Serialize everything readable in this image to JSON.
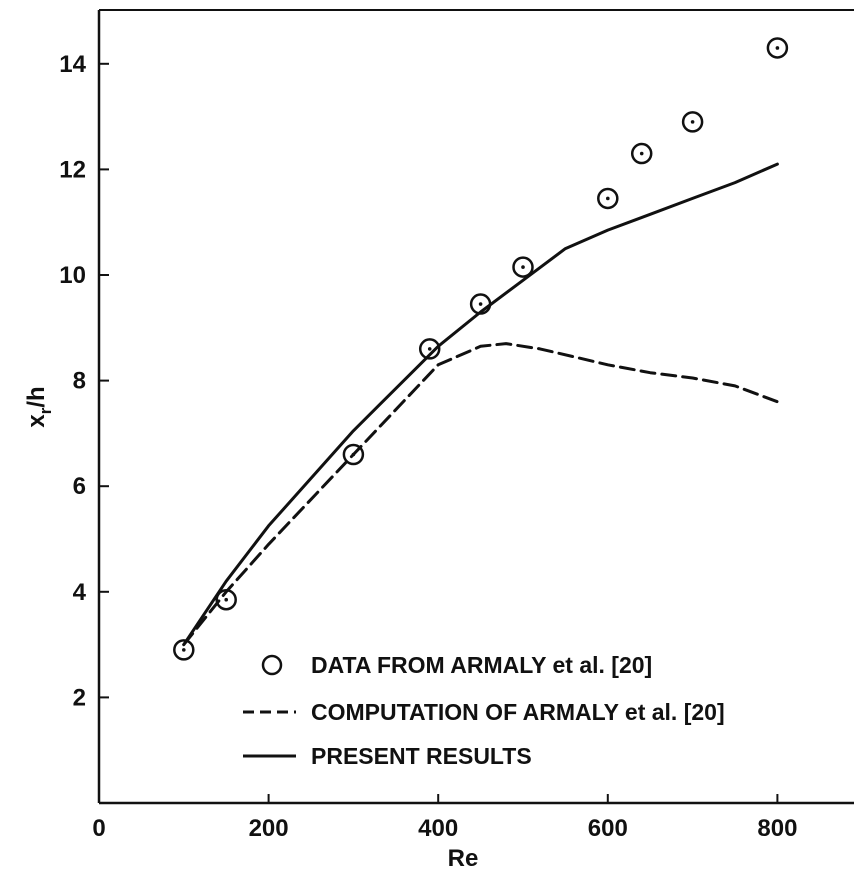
{
  "chart_data": {
    "type": "line",
    "title": "",
    "xlabel": "Re",
    "ylabel": {
      "main": "x",
      "sub": "r",
      "rest": "/h"
    },
    "xlim": [
      0,
      900
    ],
    "ylim": [
      0,
      15
    ],
    "xticks": [
      0,
      200,
      400,
      600,
      800
    ],
    "yticks": [
      2,
      4,
      6,
      8,
      10,
      12,
      14
    ],
    "grid": false,
    "legend_position": "bottom-right",
    "series": [
      {
        "name": "DATA FROM ARMALY et al. [20]",
        "style": "open-circle-with-dot",
        "x": [
          100,
          150,
          300,
          390,
          450,
          500,
          600,
          640,
          700,
          800
        ],
        "y": [
          2.9,
          3.85,
          6.6,
          8.6,
          9.45,
          10.15,
          11.45,
          12.3,
          12.9,
          14.3
        ]
      },
      {
        "name": "COMPUTATION OF ARMALY et al. [20]",
        "style": "dashed",
        "x": [
          100,
          150,
          200,
          300,
          400,
          450,
          480,
          520,
          560,
          600,
          650,
          700,
          750,
          800
        ],
        "y": [
          3.0,
          4.0,
          4.9,
          6.6,
          8.3,
          8.65,
          8.7,
          8.6,
          8.45,
          8.3,
          8.15,
          8.05,
          7.9,
          7.6
        ]
      },
      {
        "name": "PRESENT RESULTS",
        "style": "solid",
        "x": [
          100,
          150,
          200,
          300,
          400,
          450,
          500,
          550,
          600,
          650,
          700,
          750,
          800
        ],
        "y": [
          3.0,
          4.2,
          5.25,
          7.05,
          8.65,
          9.3,
          9.9,
          10.5,
          10.85,
          11.15,
          11.45,
          11.75,
          12.1
        ]
      }
    ]
  }
}
